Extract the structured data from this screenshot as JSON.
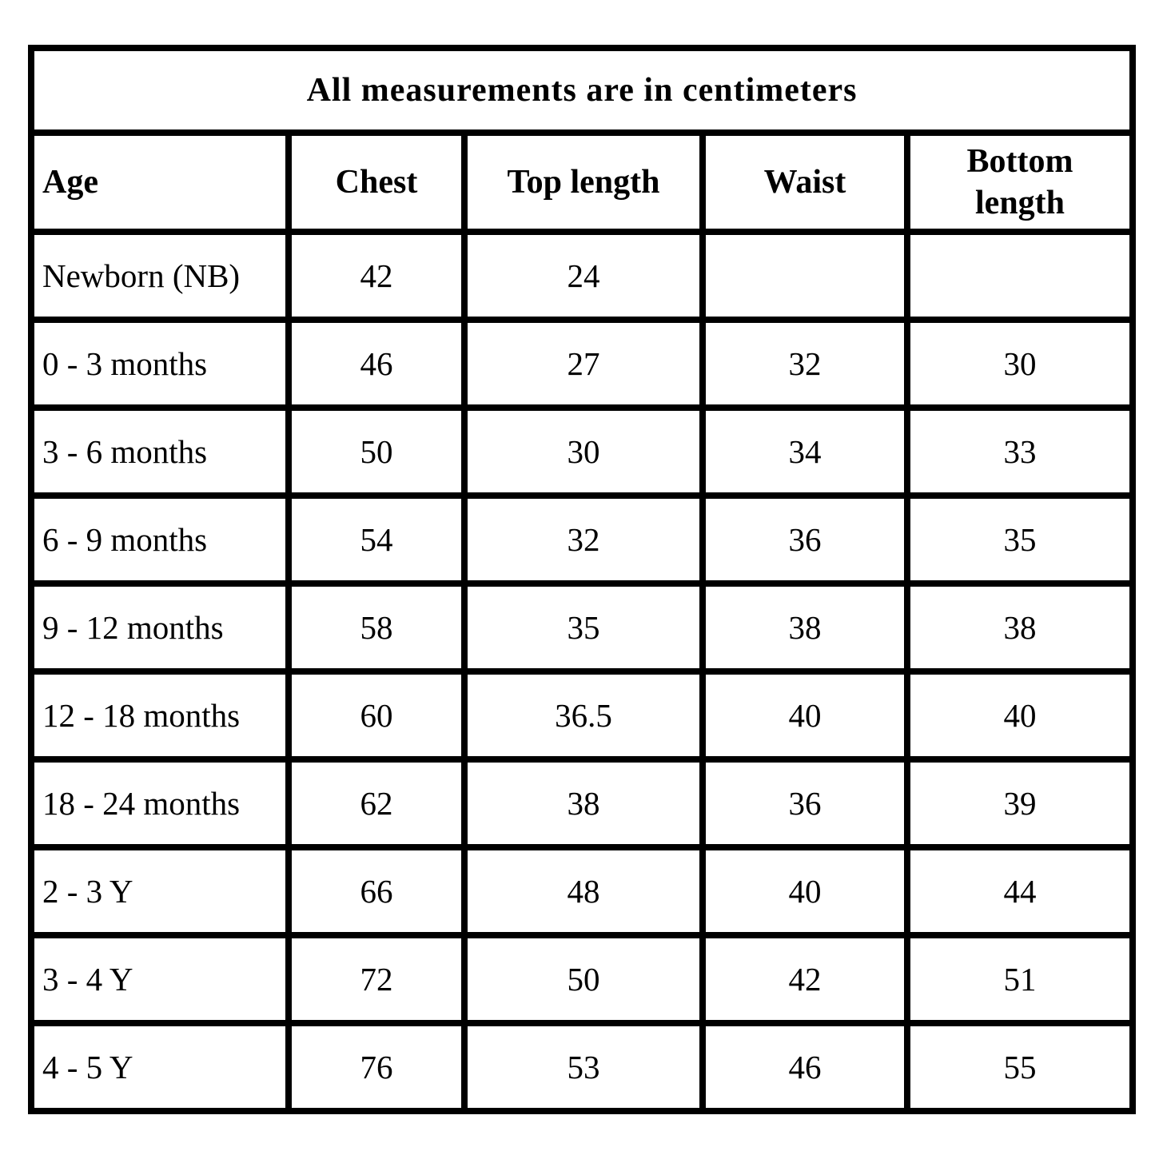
{
  "chart_data": {
    "type": "table",
    "title": "All measurements are in centimeters",
    "columns": [
      "Age",
      "Chest",
      "Top length",
      "Waist",
      "Bottom length"
    ],
    "rows": [
      [
        "Newborn (NB)",
        "42",
        "24",
        "",
        ""
      ],
      [
        "0 - 3 months",
        "46",
        "27",
        "32",
        "30"
      ],
      [
        "3 - 6 months",
        "50",
        "30",
        "34",
        "33"
      ],
      [
        "6 - 9 months",
        "54",
        "32",
        "36",
        "35"
      ],
      [
        "9 - 12 months",
        "58",
        "35",
        "38",
        "38"
      ],
      [
        "12 - 18 months",
        "60",
        "36.5",
        "40",
        "40"
      ],
      [
        "18 - 24 months",
        "62",
        "38",
        "36",
        "39"
      ],
      [
        "2 - 3 Y",
        "66",
        "48",
        "40",
        "44"
      ],
      [
        "3 - 4 Y",
        "72",
        "50",
        "42",
        "51"
      ],
      [
        "4 - 5 Y",
        "76",
        "53",
        "46",
        "55"
      ]
    ]
  }
}
